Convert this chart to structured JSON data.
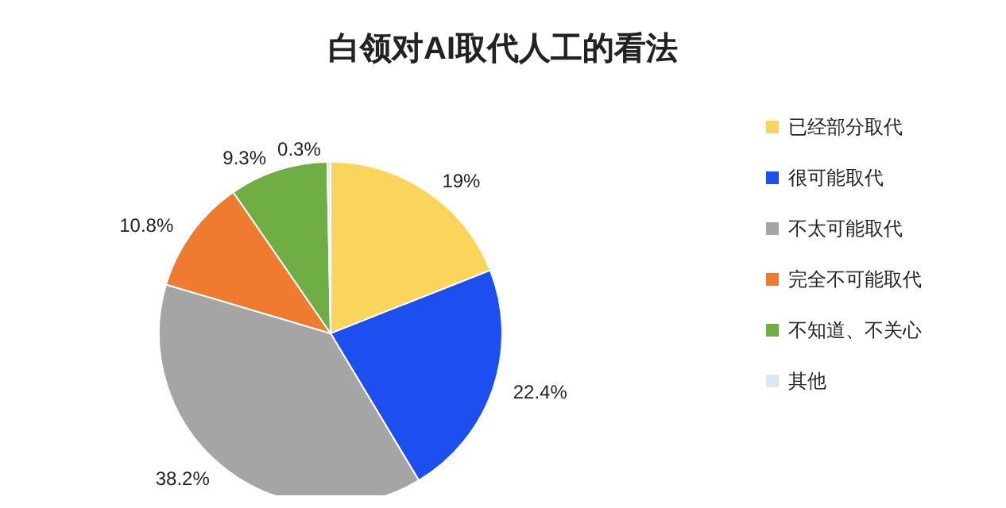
{
  "chart_data": {
    "type": "pie",
    "title": "白领对AI取代人工的看法",
    "categories": [
      "已经部分取代",
      "很可能取代",
      "不太可能取代",
      "完全不可能取代",
      "不知道、不关心",
      "其他"
    ],
    "values": [
      19,
      22.4,
      38.2,
      10.8,
      9.3,
      0.3
    ],
    "value_labels": [
      "19%",
      "22.4%",
      "38.2%",
      "10.8%",
      "9.3%",
      "0.3%"
    ],
    "colors": [
      "#fad55c",
      "#1d4ff0",
      "#a5a5a5",
      "#ee7b30",
      "#6fae45",
      "#dfe7f1"
    ],
    "legend": "right"
  }
}
